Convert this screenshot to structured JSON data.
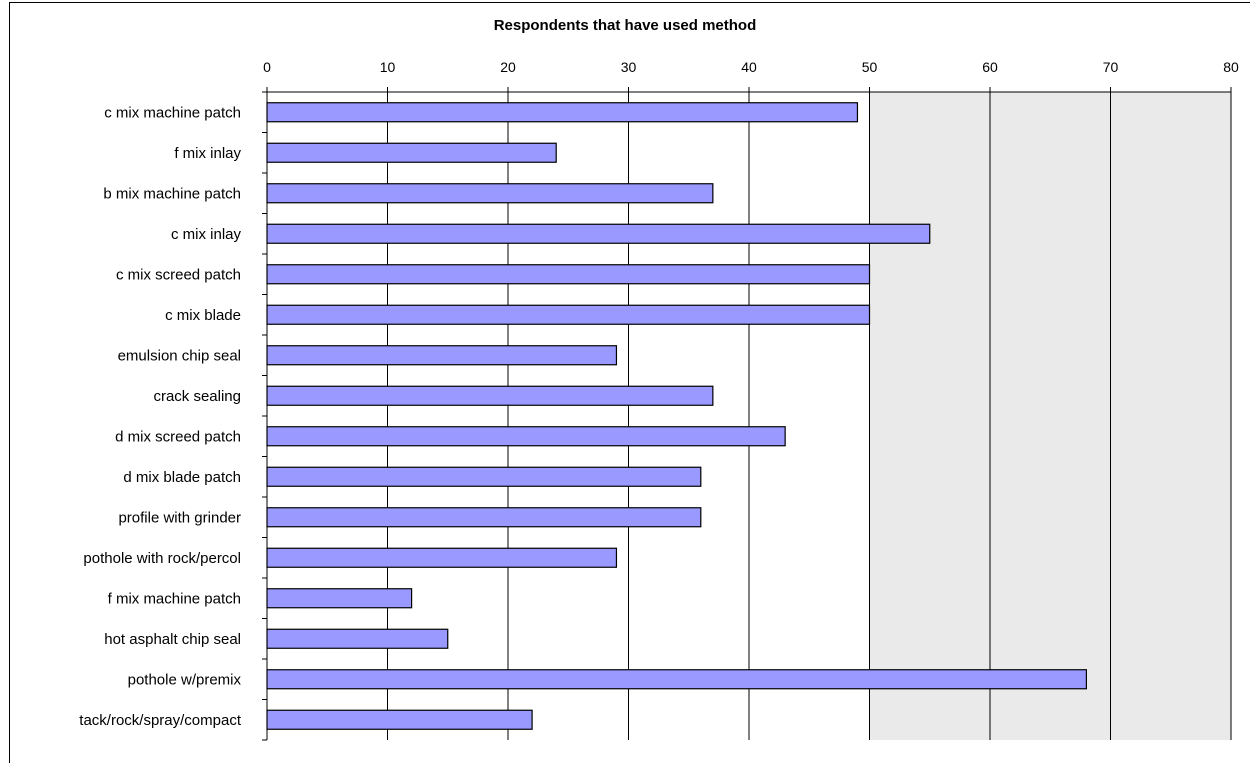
{
  "chart_data": {
    "type": "bar",
    "orientation": "horizontal",
    "title": "Respondents that have used method",
    "xlabel": "",
    "ylabel": "",
    "xlim": [
      0,
      80
    ],
    "x_ticks": [
      0,
      10,
      20,
      30,
      40,
      50,
      60,
      70,
      80
    ],
    "axis_position": "top",
    "grid": true,
    "categories": [
      "c mix machine patch",
      "f mix inlay",
      "b mix machine patch",
      "c mix inlay",
      "c mix screed patch",
      "c mix blade",
      "emulsion chip seal",
      "crack sealing",
      "d mix screed patch",
      "d mix blade patch",
      "profile with grinder",
      "pothole with rock/percol",
      "f mix machine patch",
      "hot asphalt chip seal",
      "pothole w/premix",
      "tack/rock/spray/compact"
    ],
    "values": [
      49,
      24,
      37,
      55,
      50,
      50,
      29,
      37,
      43,
      36,
      36,
      29,
      12,
      15,
      68,
      22
    ],
    "colors": {
      "bar_fill": "#9999ff",
      "bar_stroke": "#000000",
      "plot_background": "#eaeaea",
      "gridline": "#000000"
    }
  }
}
